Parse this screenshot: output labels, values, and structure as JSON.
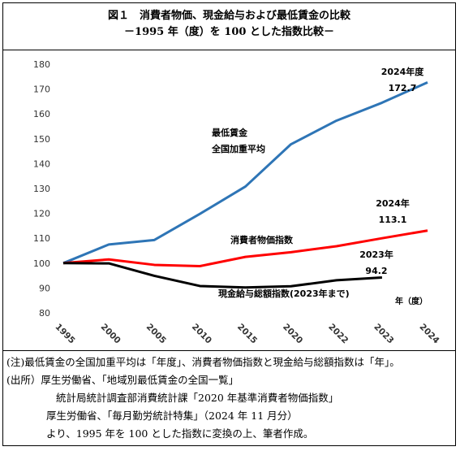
{
  "title": {
    "line1": "図１　消費者物価、現金給与および最低賃金の比較",
    "line2": "－1995 年（度）を 100 とした指数比較－"
  },
  "chart_data": {
    "type": "line",
    "x": [
      "1995",
      "2000",
      "2005",
      "2010",
      "2015",
      "2020",
      "2022",
      "2023",
      "2024"
    ],
    "ylim": [
      80,
      180
    ],
    "yticks": [
      80,
      90,
      100,
      110,
      120,
      130,
      140,
      150,
      160,
      170,
      180
    ],
    "xunit": "年（度）",
    "grid": false,
    "series": [
      {
        "name": "最低賃金 全国加重平均",
        "label_lines": [
          "最低賃金",
          "全国加重平均"
        ],
        "color": "#2E75B6",
        "values": [
          100,
          107.5,
          109.3,
          119.8,
          130.8,
          147.8,
          157.3,
          164.5,
          172.7
        ]
      },
      {
        "name": "消費者物価指数",
        "label_lines": [
          "消費者物価指数"
        ],
        "color": "#FF0000",
        "values": [
          100,
          101.5,
          99.3,
          98.8,
          102.5,
          104.4,
          106.8,
          110.0,
          113.1
        ]
      },
      {
        "name": "現金給与総額指数(2023年まで)",
        "label_lines": [
          "現金給与総額指数(2023年まで)"
        ],
        "color": "#000000",
        "values": [
          100,
          99.9,
          94.9,
          90.8,
          90.2,
          90.7,
          93.1,
          94.2,
          null
        ]
      }
    ],
    "annotations": [
      {
        "series": 0,
        "lines": [
          "2024年度",
          "172.7"
        ]
      },
      {
        "series": 1,
        "lines": [
          "2024年",
          "113.1"
        ]
      },
      {
        "series": 2,
        "lines": [
          "2023年",
          "94.2"
        ]
      }
    ]
  },
  "notes": {
    "line1": "(注)最低賃金の全国加重平均は「年度」、消費者物価指数と現金給与総額指数は「年」。",
    "line2": "(出所）厚生労働省、「地域別最低賃金の全国一覧」",
    "line3": "統計局統計調査部消費統計課「2020 年基準消費者物価指数」",
    "line4": "厚生労働省、「毎月勤労統計特集」（2024 年 11 月分）",
    "line5": "より、1995 年を 100 とした指数に変換の上、筆者作成。"
  }
}
